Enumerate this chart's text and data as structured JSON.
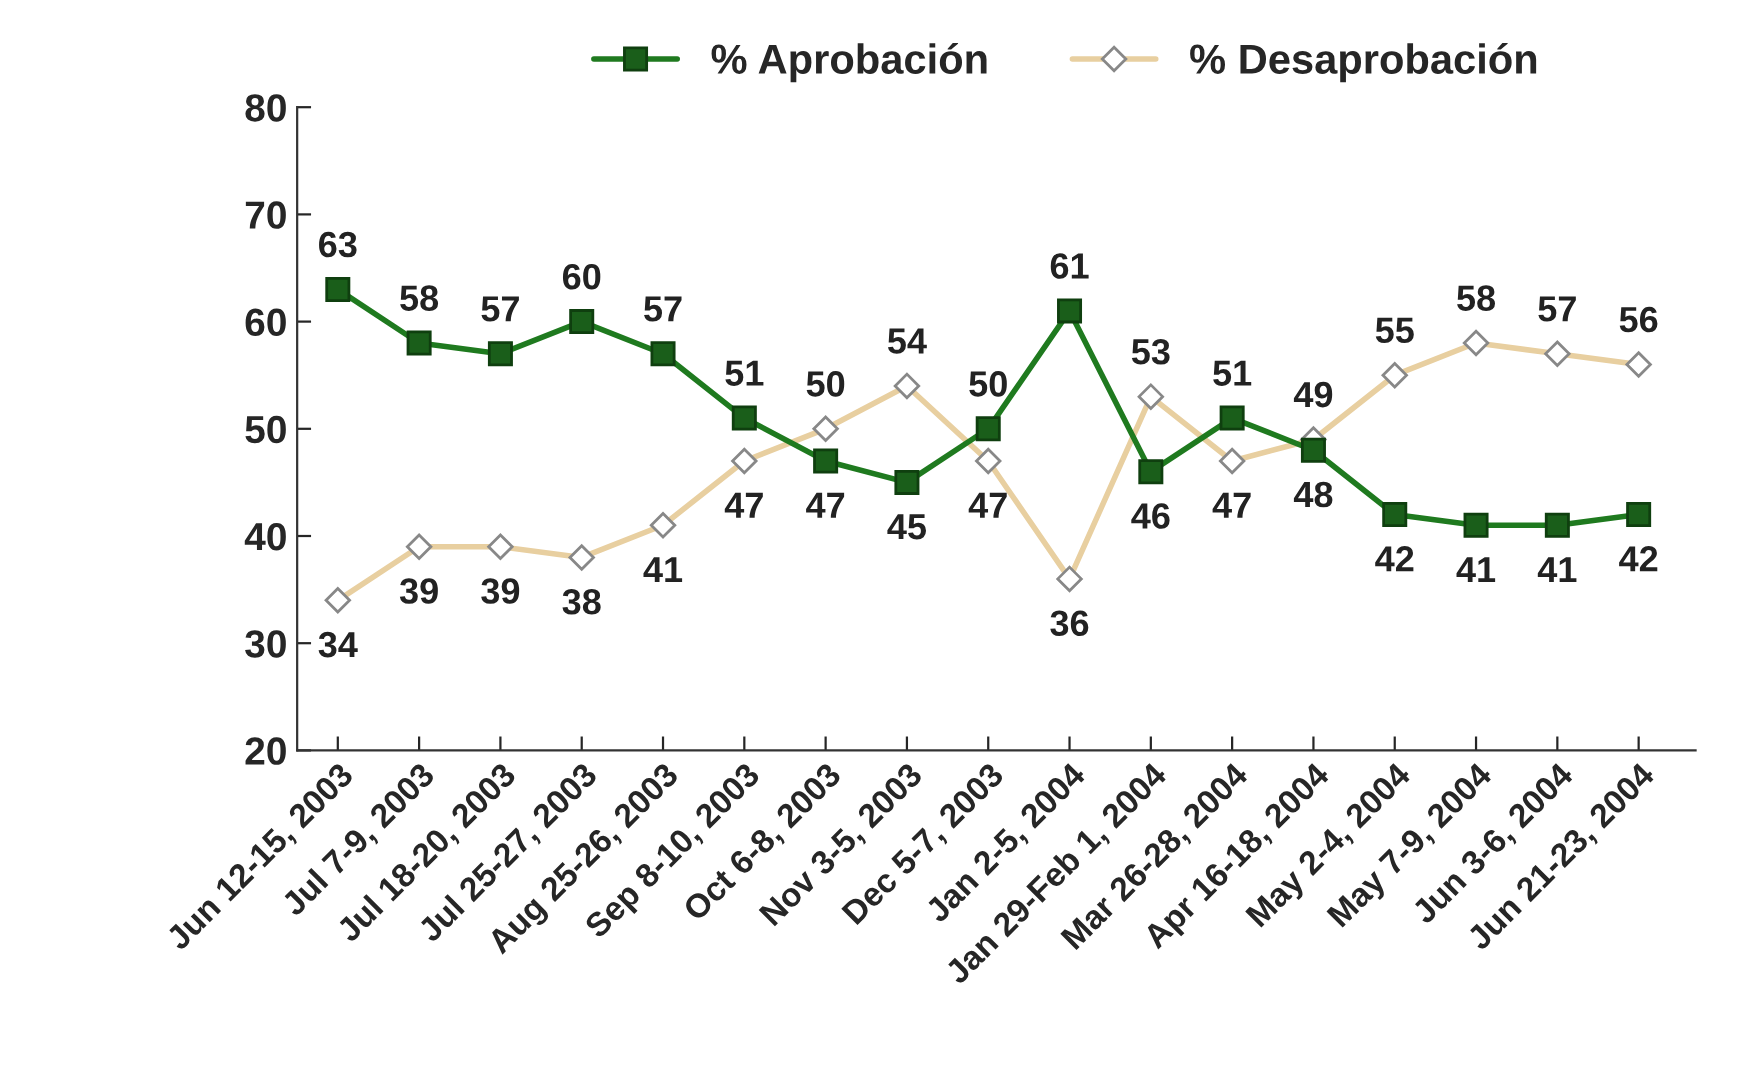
{
  "chart_data": {
    "type": "line",
    "categories": [
      "Jun 12-15, 2003",
      "Jul 7-9, 2003",
      "Jul 18-20, 2003",
      "Jul 25-27, 2003",
      "Aug 25-26, 2003",
      "Sep 8-10, 2003",
      "Oct 6-8, 2003",
      "Nov 3-5, 2003",
      "Dec 5-7, 2003",
      "Jan 2-5, 2004",
      "Jan 29-Feb 1, 2004",
      "Mar 26-28, 2004",
      "Apr 16-18, 2004",
      "May 2-4, 2004",
      "May 7-9, 2004",
      "Jun 3-6, 2004",
      "Jun 21-23, 2004"
    ],
    "series": [
      {
        "name": "% Aprobación",
        "color": "#1f7a1f",
        "marker": "square",
        "values": [
          63,
          58,
          57,
          60,
          57,
          51,
          47,
          45,
          50,
          61,
          46,
          51,
          48,
          42,
          41,
          41,
          42
        ]
      },
      {
        "name": "% Desaprobación",
        "color": "#e8cfa0",
        "marker": "diamond",
        "values": [
          34,
          39,
          39,
          38,
          41,
          47,
          50,
          54,
          47,
          36,
          53,
          47,
          49,
          55,
          58,
          57,
          56
        ]
      }
    ],
    "ylim": [
      20,
      80
    ],
    "yticks": [
      20,
      30,
      40,
      50,
      60,
      70,
      80
    ],
    "data_labels": true,
    "legend": "top",
    "grid": false
  }
}
